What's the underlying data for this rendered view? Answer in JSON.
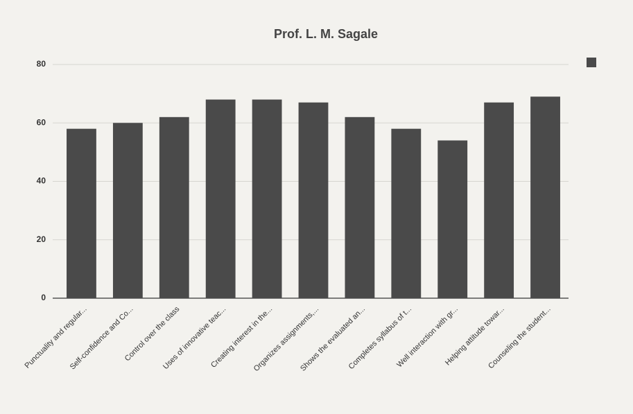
{
  "chart_data": {
    "type": "bar",
    "title": "Prof. L. M. Sagale",
    "categories": [
      "Punctuality and regular...",
      "Self-confidence and Co...",
      "Control over the class",
      "Uses of innovative teac...",
      "Creating interest in the...",
      "Organizes assignments,...",
      "Shows the evaluated an...",
      "Completes syllabus of t...",
      "Well interaction with gr...",
      "Helping attitude towar...",
      "Counseling the student..."
    ],
    "values": [
      58,
      60,
      62,
      68,
      68,
      67,
      62,
      58,
      54,
      67,
      69
    ],
    "color": "#4a4a4a",
    "ylim": [
      0,
      80
    ],
    "yticks": [
      0,
      20,
      40,
      60,
      80
    ],
    "grid": true
  }
}
